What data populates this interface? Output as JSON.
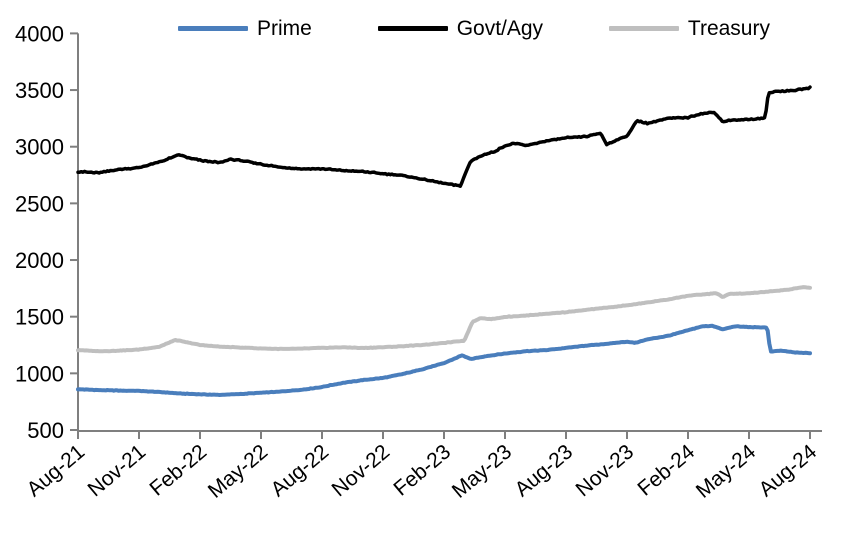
{
  "chart_data": {
    "type": "line",
    "title": "",
    "xlabel": "",
    "ylabel": "",
    "grid": false,
    "legend_position": "top",
    "axis_color": "#7f7f7f",
    "label_color": "#000000",
    "ylim": [
      500,
      4000
    ],
    "y_ticks": [
      500,
      1000,
      1500,
      2000,
      2500,
      3000,
      3500,
      4000
    ],
    "x_unit": "months since Aug-2021",
    "xlim_months": [
      0,
      36
    ],
    "x_tick_interval_months": 3,
    "x_tick_labels": [
      "Aug-21",
      "Nov-21",
      "Feb-22",
      "May-22",
      "Aug-22",
      "Nov-22",
      "Feb-23",
      "May-23",
      "Aug-23",
      "Nov-23",
      "Feb-24",
      "May-24",
      "Aug-24"
    ],
    "series": [
      {
        "name": "Prime",
        "color": "#4a7ebc",
        "width": 4,
        "jitter": 3.5,
        "points": [
          [
            0,
            860
          ],
          [
            1,
            852
          ],
          [
            2,
            848
          ],
          [
            3,
            845
          ],
          [
            4,
            835
          ],
          [
            5,
            822
          ],
          [
            6,
            815
          ],
          [
            7,
            810
          ],
          [
            8,
            818
          ],
          [
            9,
            828
          ],
          [
            10,
            840
          ],
          [
            11,
            855
          ],
          [
            12,
            880
          ],
          [
            13,
            915
          ],
          [
            14,
            940
          ],
          [
            15,
            960
          ],
          [
            16,
            995
          ],
          [
            17,
            1040
          ],
          [
            18,
            1090
          ],
          [
            18.9,
            1160
          ],
          [
            19.3,
            1125
          ],
          [
            20,
            1150
          ],
          [
            21,
            1175
          ],
          [
            22,
            1195
          ],
          [
            23,
            1205
          ],
          [
            24,
            1225
          ],
          [
            25,
            1245
          ],
          [
            26,
            1260
          ],
          [
            27,
            1280
          ],
          [
            27.4,
            1268
          ],
          [
            28,
            1300
          ],
          [
            29,
            1330
          ],
          [
            30,
            1380
          ],
          [
            30.7,
            1415
          ],
          [
            31.2,
            1420
          ],
          [
            31.7,
            1388
          ],
          [
            32.3,
            1415
          ],
          [
            33,
            1408
          ],
          [
            33.9,
            1405
          ],
          [
            34.05,
            1192
          ],
          [
            34.6,
            1200
          ],
          [
            35.2,
            1185
          ],
          [
            36,
            1178
          ]
        ]
      },
      {
        "name": "Govt/Agy",
        "color": "#000000",
        "width": 3.5,
        "jitter": 8,
        "points": [
          [
            0,
            2780
          ],
          [
            1,
            2770
          ],
          [
            2,
            2800
          ],
          [
            3,
            2815
          ],
          [
            4,
            2865
          ],
          [
            5,
            2930
          ],
          [
            5.5,
            2898
          ],
          [
            6,
            2880
          ],
          [
            7,
            2858
          ],
          [
            7.5,
            2890
          ],
          [
            8,
            2878
          ],
          [
            9,
            2845
          ],
          [
            10,
            2818
          ],
          [
            11,
            2805
          ],
          [
            12,
            2805
          ],
          [
            13,
            2790
          ],
          [
            14,
            2780
          ],
          [
            15,
            2762
          ],
          [
            16,
            2745
          ],
          [
            17,
            2710
          ],
          [
            18,
            2678
          ],
          [
            18.8,
            2652
          ],
          [
            19.3,
            2870
          ],
          [
            19.8,
            2920
          ],
          [
            20.5,
            2958
          ],
          [
            21,
            3010
          ],
          [
            21.5,
            3030
          ],
          [
            22,
            3008
          ],
          [
            23,
            3050
          ],
          [
            24,
            3078
          ],
          [
            25,
            3090
          ],
          [
            25.7,
            3120
          ],
          [
            26,
            3020
          ],
          [
            26.5,
            3060
          ],
          [
            27,
            3095
          ],
          [
            27.5,
            3230
          ],
          [
            28,
            3205
          ],
          [
            29,
            3250
          ],
          [
            30,
            3258
          ],
          [
            30.5,
            3285
          ],
          [
            31.3,
            3305
          ],
          [
            31.7,
            3220
          ],
          [
            32,
            3232
          ],
          [
            33,
            3240
          ],
          [
            33.8,
            3255
          ],
          [
            33.95,
            3475
          ],
          [
            34.5,
            3490
          ],
          [
            35,
            3495
          ],
          [
            35.5,
            3505
          ],
          [
            36,
            3520
          ]
        ]
      },
      {
        "name": "Treasury",
        "color": "#bfbfbf",
        "width": 4,
        "jitter": 3.5,
        "points": [
          [
            0,
            1205
          ],
          [
            1,
            1195
          ],
          [
            2,
            1200
          ],
          [
            3,
            1210
          ],
          [
            4,
            1235
          ],
          [
            4.8,
            1295
          ],
          [
            5.5,
            1268
          ],
          [
            6,
            1250
          ],
          [
            7,
            1235
          ],
          [
            8,
            1228
          ],
          [
            9,
            1220
          ],
          [
            10,
            1215
          ],
          [
            11,
            1218
          ],
          [
            12,
            1225
          ],
          [
            13,
            1230
          ],
          [
            14,
            1224
          ],
          [
            15,
            1230
          ],
          [
            16,
            1240
          ],
          [
            17,
            1252
          ],
          [
            18,
            1268
          ],
          [
            19,
            1288
          ],
          [
            19.4,
            1455
          ],
          [
            19.8,
            1488
          ],
          [
            20.3,
            1478
          ],
          [
            21,
            1498
          ],
          [
            22,
            1510
          ],
          [
            23,
            1525
          ],
          [
            24,
            1540
          ],
          [
            25,
            1560
          ],
          [
            26,
            1580
          ],
          [
            27,
            1600
          ],
          [
            28,
            1625
          ],
          [
            29,
            1652
          ],
          [
            30,
            1685
          ],
          [
            31,
            1700
          ],
          [
            31.4,
            1708
          ],
          [
            31.7,
            1672
          ],
          [
            32,
            1700
          ],
          [
            33,
            1706
          ],
          [
            34,
            1722
          ],
          [
            35,
            1740
          ],
          [
            35.7,
            1762
          ],
          [
            36,
            1755
          ]
        ]
      }
    ]
  }
}
